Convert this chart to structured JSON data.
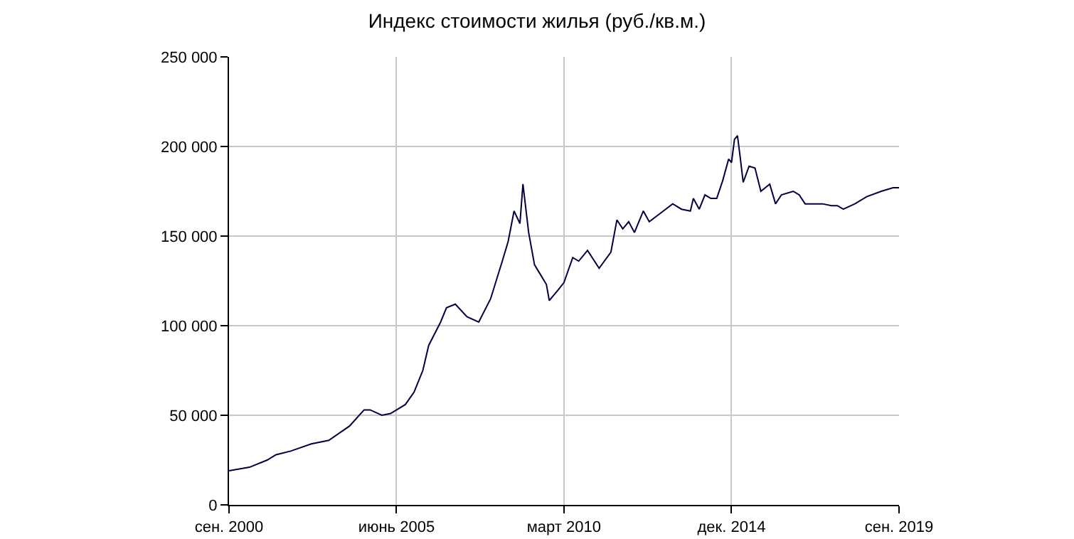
{
  "chart_data": {
    "type": "line",
    "title": "Индекс стоимости жилья (руб./кв.м.)",
    "x": [
      "2000-09",
      "2001-04",
      "2001-10",
      "2002-01",
      "2002-06",
      "2003-01",
      "2003-07",
      "2004-02",
      "2004-07",
      "2004-09",
      "2005-01",
      "2005-04",
      "2005-09",
      "2005-12",
      "2006-03",
      "2006-05",
      "2006-09",
      "2006-11",
      "2007-02",
      "2007-06",
      "2007-10",
      "2008-02",
      "2008-06",
      "2008-08",
      "2008-10",
      "2008-12",
      "2009-01",
      "2009-03",
      "2009-05",
      "2009-09",
      "2009-10",
      "2010-01",
      "2010-03",
      "2010-06",
      "2010-08",
      "2010-11",
      "2011-03",
      "2011-07",
      "2011-09",
      "2011-11",
      "2012-01",
      "2012-03",
      "2012-06",
      "2012-08",
      "2012-12",
      "2013-04",
      "2013-07",
      "2013-10",
      "2013-11",
      "2014-01",
      "2014-03",
      "2014-05",
      "2014-07",
      "2014-09",
      "2014-11",
      "2014-12",
      "2015-01",
      "2015-02",
      "2015-03",
      "2015-04",
      "2015-06",
      "2015-08",
      "2015-10",
      "2016-01",
      "2016-03",
      "2016-05",
      "2016-09",
      "2016-11",
      "2017-01",
      "2017-07",
      "2017-10",
      "2017-12",
      "2018-02",
      "2018-06",
      "2018-10",
      "2019-03",
      "2019-07",
      "2019-09"
    ],
    "series": [
      {
        "color": "#000040",
        "values": [
          19000,
          21000,
          25000,
          28000,
          30000,
          34000,
          36000,
          44000,
          53000,
          53000,
          50000,
          51000,
          56000,
          63000,
          75000,
          89000,
          102000,
          110000,
          112000,
          105000,
          102000,
          115000,
          136000,
          147000,
          164000,
          157000,
          179000,
          152000,
          134000,
          123000,
          114000,
          120000,
          124000,
          138000,
          136000,
          142000,
          132000,
          141000,
          159000,
          154000,
          158000,
          152000,
          164000,
          158000,
          163000,
          168000,
          165000,
          164000,
          171000,
          165000,
          173000,
          171000,
          171000,
          181000,
          193000,
          191000,
          204000,
          206000,
          194000,
          180000,
          189000,
          188000,
          175000,
          179000,
          168000,
          173000,
          175000,
          173000,
          168000,
          168000,
          167000,
          167000,
          165000,
          168000,
          172000,
          175000,
          177000,
          177000
        ]
      }
    ],
    "xlim": [
      "2000-09",
      "2019-09"
    ],
    "xticks": [
      {
        "value": "2000-09",
        "label": "сен. 2000"
      },
      {
        "value": "2005-06",
        "label": "июнь 2005"
      },
      {
        "value": "2010-03",
        "label": "март 2010"
      },
      {
        "value": "2014-12",
        "label": "дек. 2014"
      },
      {
        "value": "2019-09",
        "label": "сен. 2019"
      }
    ],
    "ylim": [
      0,
      250000
    ],
    "yticks": [
      {
        "value": 0,
        "label": "0"
      },
      {
        "value": 50000,
        "label": "50 000"
      },
      {
        "value": 100000,
        "label": "100 000"
      },
      {
        "value": 150000,
        "label": "150 000"
      },
      {
        "value": 200000,
        "label": "200 000"
      },
      {
        "value": 250000,
        "label": "250 000"
      }
    ],
    "grid": true,
    "line_style": "solid",
    "marker": "none"
  }
}
